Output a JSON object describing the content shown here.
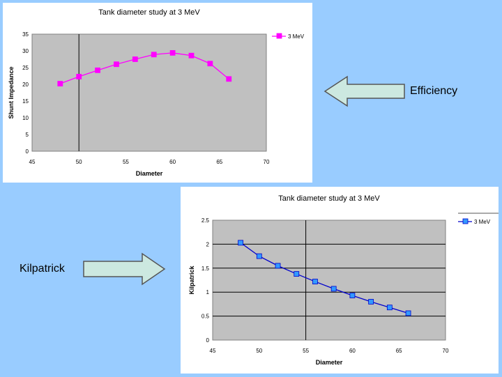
{
  "labels": {
    "efficiency": "Efficiency",
    "kilpatrick": "Kilpatrick"
  },
  "colors": {
    "background": "#99ccff",
    "plot_area": "#c0c0c0",
    "arrow_fill": "#cce8e0",
    "series_top": "#ff00ff",
    "series_bottom": "#0000cc",
    "marker_bottom": "#3399ff"
  },
  "chart_data": [
    {
      "type": "line",
      "title": "Tank diameter study at 3 MeV",
      "xlabel": "Diameter",
      "ylabel": "Shunt Impedance",
      "xlim": [
        45,
        70
      ],
      "ylim": [
        0,
        35
      ],
      "xticks": [
        45,
        50,
        55,
        60,
        65,
        70
      ],
      "yticks": [
        0,
        5,
        10,
        15,
        20,
        25,
        30,
        35
      ],
      "grid": false,
      "vline": 50,
      "legend": "top-right",
      "series": [
        {
          "name": "3 MeV",
          "x": [
            48,
            50,
            52,
            54,
            56,
            58,
            60,
            62,
            64,
            66
          ],
          "values": [
            20.2,
            22.3,
            24.2,
            26,
            27.5,
            28.9,
            29.4,
            28.6,
            26.2,
            21.6
          ]
        }
      ]
    },
    {
      "type": "line",
      "title": "Tank diameter study at 3 MeV",
      "xlabel": "Diameter",
      "ylabel": "Kilpatrick",
      "xlim": [
        45,
        70
      ],
      "ylim": [
        0,
        2.5
      ],
      "xticks": [
        45,
        50,
        55,
        60,
        65,
        70
      ],
      "yticks": [
        0,
        0.5,
        1,
        1.5,
        2,
        2.5
      ],
      "grid": true,
      "vline": 55,
      "legend": "top-right",
      "series": [
        {
          "name": "3 MeV",
          "x": [
            48,
            50,
            52,
            54,
            56,
            58,
            60,
            62,
            64,
            66
          ],
          "values": [
            2.03,
            1.75,
            1.55,
            1.38,
            1.22,
            1.07,
            0.93,
            0.8,
            0.68,
            0.56
          ]
        }
      ]
    }
  ]
}
